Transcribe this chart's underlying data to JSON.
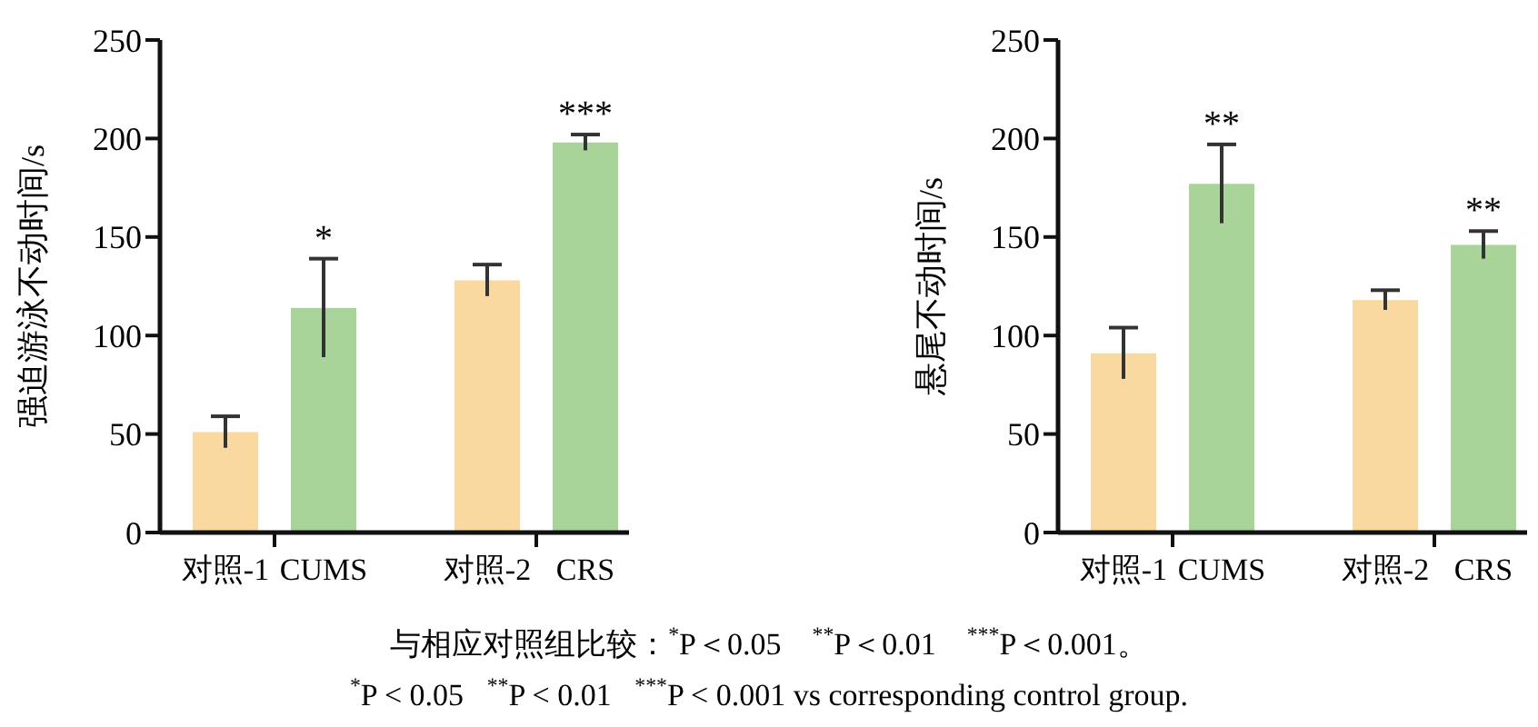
{
  "chart_data": [
    {
      "type": "bar",
      "ylabel": "强迫游泳不动时间/s",
      "categories": [
        "对照-1",
        "CUMS",
        "对照-2",
        "CRS"
      ],
      "values": [
        51,
        114,
        128,
        198
      ],
      "errors": [
        8,
        25,
        8,
        4
      ],
      "colors": [
        "#f9d9a0",
        "#a8d49a",
        "#f9d9a0",
        "#a8d49a"
      ],
      "ylim": [
        0,
        250
      ],
      "yticks": [
        0,
        50,
        100,
        150,
        200,
        250
      ],
      "grid": false,
      "annotations": [
        {
          "text": "*",
          "x": "CUMS",
          "y": 139
        },
        {
          "text": "***",
          "x": "CRS",
          "y": 202
        },
        "与相应对照组比较：$^{*}$P＜0.05    $^{**}$P＜0.01    $^{***}$P＜0.001。",
        "$^{*}$P < 0.05   $^{**}$P < 0.01   $^{***}$P < 0.001 vs corresponding control group."
      ]
    },
    {
      "type": "bar",
      "ylabel": "悬尾不动时间/s",
      "categories": [
        "对照-1",
        "CUMS",
        "对照-2",
        "CRS"
      ],
      "values": [
        91,
        177,
        118,
        146
      ],
      "errors": [
        13,
        20,
        5,
        7
      ],
      "colors": [
        "#f9d9a0",
        "#a8d49a",
        "#f9d9a0",
        "#a8d49a"
      ],
      "ylim": [
        0,
        250
      ],
      "yticks": [
        0,
        50,
        100,
        150,
        200,
        250
      ],
      "grid": false,
      "annotations": [
        {
          "text": "**",
          "x": "CUMS",
          "y": 197
        },
        {
          "text": "**",
          "x": "CRS",
          "y": 153
        }
      ]
    }
  ]
}
